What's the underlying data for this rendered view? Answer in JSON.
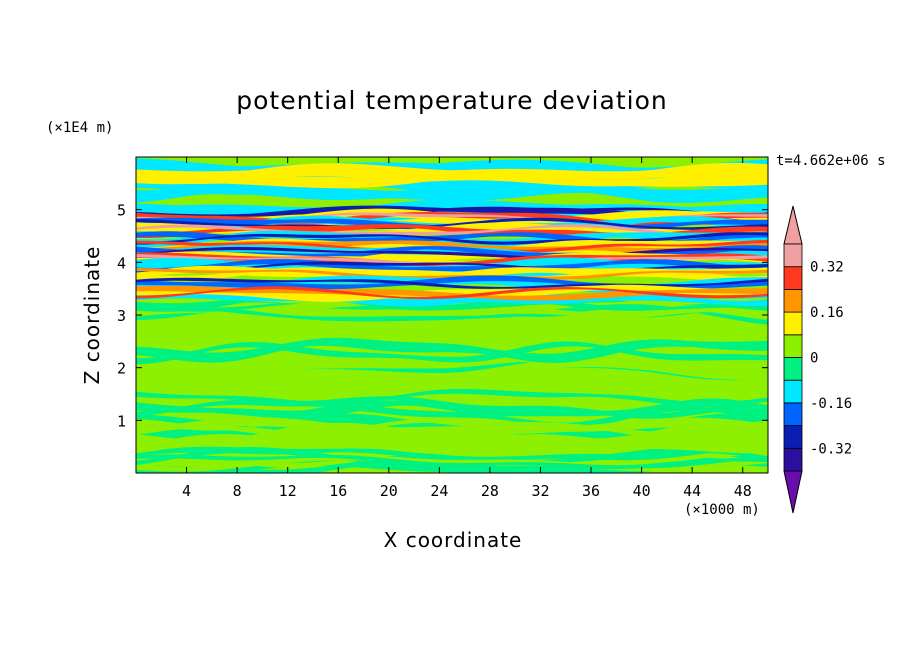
{
  "chart_data": {
    "type": "heatmap",
    "title": "potential temperature deviation",
    "xlabel": "X coordinate",
    "ylabel": "Z coordinate",
    "x_unit": "(×1000 m)",
    "y_unit": "(×1E4 m)",
    "time_label": "t=4.662e+06 s",
    "xlim": [
      0,
      50
    ],
    "ylim": [
      0,
      6
    ],
    "x_ticks": [
      4,
      8,
      12,
      16,
      20,
      24,
      28,
      32,
      36,
      40,
      44,
      48
    ],
    "y_ticks": [
      1,
      2,
      3,
      4,
      5
    ],
    "colorbar": {
      "levels": [
        -0.4,
        -0.32,
        -0.24,
        -0.16,
        -0.08,
        0,
        0.08,
        0.16,
        0.24,
        0.32,
        0.4
      ],
      "labels": [
        "0.32",
        "0.16",
        "0",
        "-0.16",
        "-0.32"
      ],
      "colors": [
        "#6a0dad",
        "#2b0f9e",
        "#0a1eb4",
        "#0064ff",
        "#00e8ff",
        "#00f082",
        "#8cf000",
        "#fff000",
        "#ff9600",
        "#ff3a1e",
        "#f0a0a0"
      ]
    },
    "bands": [
      {
        "z": 4.95,
        "value": -0.36
      },
      {
        "z": 4.85,
        "value": 0.4
      },
      {
        "z": 4.72,
        "value": -0.3
      },
      {
        "z": 4.6,
        "value": 0.35
      },
      {
        "z": 4.45,
        "value": -0.28
      },
      {
        "z": 4.3,
        "value": 0.3
      },
      {
        "z": 4.18,
        "value": -0.33
      },
      {
        "z": 4.05,
        "value": 0.38
      },
      {
        "z": 3.92,
        "value": -0.25
      },
      {
        "z": 3.78,
        "value": 0.22
      },
      {
        "z": 3.6,
        "value": -0.3
      },
      {
        "z": 3.42,
        "value": 0.28
      }
    ]
  }
}
